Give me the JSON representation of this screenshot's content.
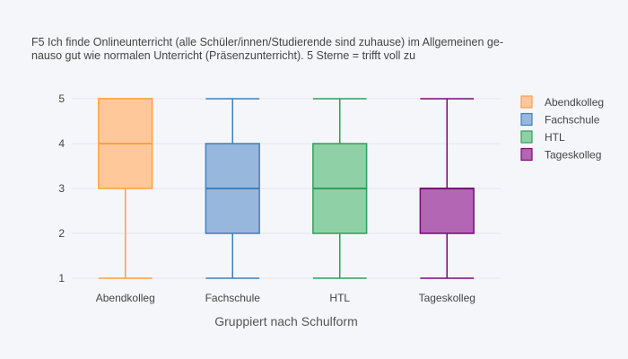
{
  "chart_data": {
    "type": "box",
    "title": {
      "line1": "F5 Ich finde Onlineunterricht (alle Schüler/innen/Studierende sind zuhause) im Allgemeinen ge-",
      "line2": "nauso gut wie normalen Unterricht (Präsenzunterricht). 5 Sterne = trifft voll zu"
    },
    "xlabel": "Gruppiert nach Schulform",
    "ylabel": "",
    "ylim": [
      0.8,
      5.2
    ],
    "yticks": [
      1,
      2,
      3,
      4,
      5
    ],
    "grid": true,
    "legend_position": "top-right",
    "categories": [
      "Abendkolleg",
      "Fachschule",
      "HTL",
      "Tageskolleg"
    ],
    "series": [
      {
        "name": "Abendkolleg",
        "color": "#ff9f40",
        "fill": "#ffc89a",
        "min": 1,
        "q1": 3,
        "median": 4,
        "q3": 5,
        "max": 5
      },
      {
        "name": "Fachschule",
        "color": "#3f7fbf",
        "fill": "#98b7dc",
        "min": 1,
        "q1": 2,
        "median": 3,
        "q3": 4,
        "max": 5
      },
      {
        "name": "HTL",
        "color": "#2ca05a",
        "fill": "#90d0a6",
        "min": 1,
        "q1": 2,
        "median": 3,
        "q3": 4,
        "max": 5
      },
      {
        "name": "Tageskolleg",
        "color": "#7b0a7b",
        "fill": "#b366b3",
        "min": 1,
        "q1": 2,
        "median": 3,
        "q3": 3,
        "max": 5
      }
    ]
  }
}
